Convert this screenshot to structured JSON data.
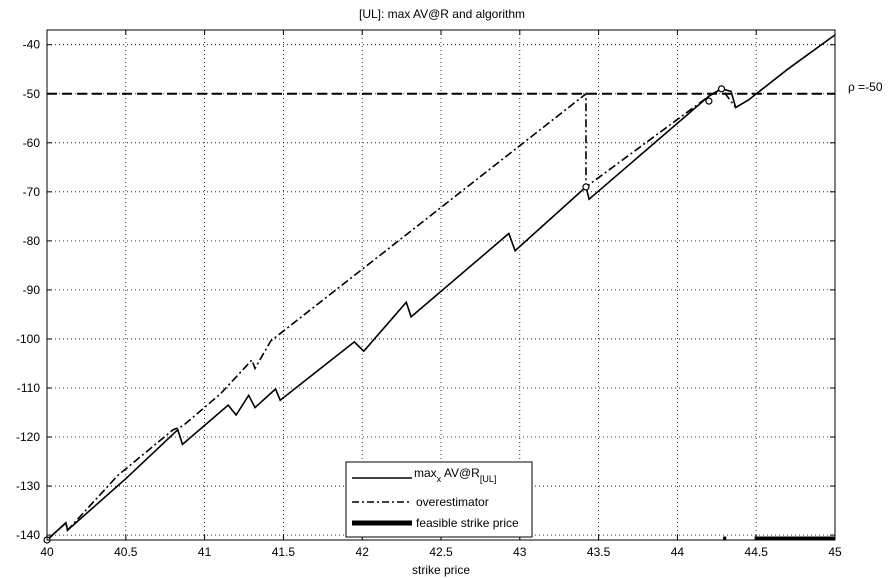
{
  "chart_data": {
    "type": "line",
    "title": "[UL]: max AV@R and algorithm",
    "xlabel": "strike price",
    "ylabel": "",
    "xlim": [
      40,
      45
    ],
    "ylim": [
      -141,
      -37
    ],
    "xticks": [
      40,
      40.5,
      41,
      41.5,
      42,
      42.5,
      43,
      43.5,
      44,
      44.5,
      45
    ],
    "xtick_labels": [
      "40",
      "40.5",
      "41",
      "41.5",
      "42",
      "42.5",
      "43",
      "43.5",
      "44",
      "44.5",
      "45"
    ],
    "yticks": [
      -140,
      -130,
      -120,
      -110,
      -100,
      -90,
      -80,
      -70,
      -60,
      -50,
      -40
    ],
    "ytick_labels": [
      "-140",
      "-130",
      "-120",
      "-110",
      "-100",
      "-90",
      "-80",
      "-70",
      "-60",
      "-50",
      "-40"
    ],
    "grid": true,
    "legend_position": "bottom-center",
    "threshold": {
      "y": -50,
      "label": "ρ =-50"
    },
    "series": [
      {
        "name": "max",
        "name_sub": "x",
        "name_rest": " AV@R",
        "name_sub2": "[UL]",
        "style": "solid",
        "x": [
          40.0,
          40.12,
          40.13,
          40.5,
          40.83,
          40.86,
          41.15,
          41.2,
          41.28,
          41.32,
          41.45,
          41.48,
          41.95,
          42.01,
          42.28,
          42.31,
          42.93,
          42.97,
          43.42,
          43.44,
          44.2,
          44.28,
          44.34,
          44.37,
          44.45,
          44.7,
          45.0
        ],
        "y": [
          -141,
          -137.5,
          -139,
          -128.5,
          -118.5,
          -121.5,
          -113.5,
          -115.5,
          -111.5,
          -114,
          -110.2,
          -112.5,
          -100.6,
          -102.5,
          -92.5,
          -95.5,
          -78.5,
          -82,
          -69,
          -71.5,
          -50.5,
          -49,
          -49.5,
          -52.8,
          -51.3,
          -45,
          -38
        ]
      },
      {
        "name": "overestimator",
        "style": "dashdot",
        "x": [
          40.0,
          40.12,
          40.13,
          40.45,
          40.5,
          40.8,
          40.86,
          41.1,
          41.3,
          41.32,
          41.42,
          43.42,
          43.42,
          44.2,
          44.28,
          44.37
        ],
        "y": [
          -141,
          -137.5,
          -139,
          -127.8,
          -126.5,
          -118.5,
          -117.8,
          -111.2,
          -104.3,
          -106,
          -100.4,
          -50,
          -69,
          -50.5,
          -49,
          -52.8
        ]
      },
      {
        "name": "feasible strike price",
        "style": "thick",
        "segments": [
          [
            44.29,
            44.31
          ],
          [
            44.49,
            45.0
          ]
        ],
        "y": -140.7
      }
    ],
    "markers": [
      {
        "x": 40.0,
        "y": -141
      },
      {
        "x": 43.42,
        "y": -69
      },
      {
        "x": 44.2,
        "y": -51.5
      },
      {
        "x": 44.28,
        "y": -49
      }
    ]
  }
}
